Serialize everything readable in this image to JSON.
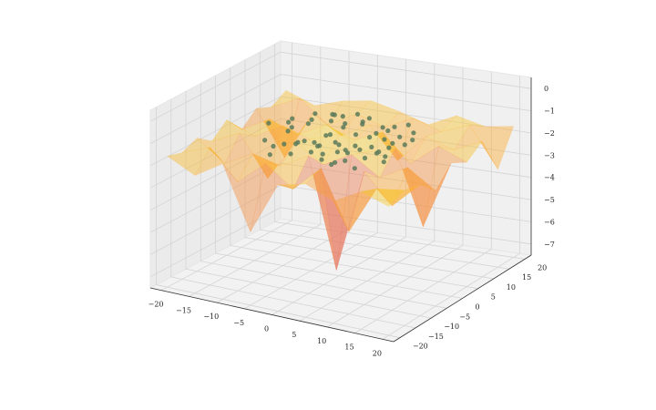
{
  "chart_data": {
    "type": "surface3d",
    "title": "",
    "xlabel": "",
    "ylabel": "",
    "zlabel": "",
    "xlim": [
      -22,
      22
    ],
    "ylim": [
      -22,
      22
    ],
    "zlim": [
      -7.5,
      0.5
    ],
    "xticks": [
      -20,
      -15,
      -10,
      -5,
      0,
      5,
      10,
      15,
      20
    ],
    "yticks": [
      -20,
      -15,
      -10,
      -5,
      0,
      5,
      10,
      15,
      20
    ],
    "zticks": [
      0,
      -1,
      -2,
      -3,
      -4,
      -5,
      -6,
      -7
    ],
    "x_tick_labels": [
      "−20",
      "−15",
      "−10",
      "−5",
      "0",
      "5",
      "10",
      "15",
      "20"
    ],
    "y_tick_labels": [
      "−20",
      "−15",
      "−10",
      "−5",
      "0",
      "5",
      "10",
      "15",
      "20"
    ],
    "z_tick_labels": [
      "0",
      "−1",
      "−2",
      "−3",
      "−4",
      "−5",
      "−6",
      "−7"
    ],
    "grid": true,
    "surface": {
      "x": [
        -20,
        -15,
        -10,
        -5,
        0,
        5,
        10,
        15,
        20
      ],
      "y": [
        -20,
        -15,
        -10,
        -5,
        0,
        5,
        10,
        15,
        20
      ],
      "z": [
        [
          -1.6,
          -2.2,
          -1.4,
          -4.2,
          -1.8,
          -1.5,
          -2.0,
          -1.3,
          -1.7
        ],
        [
          -1.8,
          -1.3,
          -2.6,
          -1.5,
          -2.4,
          -1.2,
          -3.8,
          -1.6,
          -1.4
        ],
        [
          -1.5,
          -2.4,
          -1.7,
          -2.0,
          -1.3,
          -6.2,
          -1.5,
          -2.8,
          -1.6
        ],
        [
          -2.0,
          -1.4,
          -3.2,
          -1.3,
          -2.1,
          -1.4,
          -2.2,
          -1.5,
          -2.3
        ],
        [
          -1.4,
          -1.9,
          -1.2,
          -1.6,
          -1.1,
          -1.7,
          -1.3,
          -4.6,
          -1.5
        ],
        [
          -2.2,
          -1.5,
          -2.0,
          -1.3,
          -1.8,
          -1.2,
          -2.4,
          -1.4,
          -1.9
        ],
        [
          -1.6,
          -3.6,
          -1.4,
          -2.2,
          -1.5,
          -2.9,
          -1.6,
          -2.0,
          -1.4
        ],
        [
          -1.9,
          -1.3,
          -2.3,
          -1.6,
          -2.0,
          -1.4,
          -1.8,
          -1.3,
          -3.1
        ],
        [
          -1.5,
          -2.0,
          -1.6,
          -1.4,
          -1.7,
          -2.1,
          -1.5,
          -1.8,
          -1.6
        ]
      ],
      "colormap": [
        "#0d0887",
        "#6a00a8",
        "#b12a90",
        "#e16462",
        "#fca636",
        "#f0f921"
      ],
      "opacity": 0.45
    },
    "scatter": {
      "color": "#5a7a5a",
      "points": [
        [
          -8,
          -2,
          -1.2
        ],
        [
          -6,
          1,
          -1.0
        ],
        [
          -4,
          -4,
          -1.3
        ],
        [
          -3,
          3,
          -0.9
        ],
        [
          -1,
          -1,
          -1.1
        ],
        [
          0,
          2,
          -0.8
        ],
        [
          1,
          -3,
          -1.2
        ],
        [
          2,
          4,
          -0.9
        ],
        [
          3,
          0,
          -1.0
        ],
        [
          4,
          -2,
          -1.3
        ],
        [
          5,
          3,
          -1.1
        ],
        [
          6,
          -1,
          -0.9
        ],
        [
          7,
          2,
          -1.2
        ],
        [
          8,
          -4,
          -1.0
        ],
        [
          -7,
          4,
          -1.1
        ],
        [
          -5,
          -5,
          -1.4
        ],
        [
          -2,
          5,
          -0.8
        ],
        [
          1,
          6,
          -1.0
        ],
        [
          3,
          -6,
          -1.3
        ],
        [
          6,
          5,
          -1.1
        ],
        [
          9,
          1,
          -1.2
        ],
        [
          -9,
          0,
          -1.0
        ],
        [
          -10,
          3,
          -1.5
        ],
        [
          10,
          -2,
          -1.1
        ],
        [
          -4,
          6,
          -0.9
        ],
        [
          4,
          7,
          -1.2
        ],
        [
          -6,
          -7,
          -1.3
        ],
        [
          7,
          -6,
          -1.0
        ],
        [
          0,
          -7,
          -1.1
        ],
        [
          -1,
          8,
          -0.9
        ],
        [
          2,
          -9,
          -1.2
        ],
        [
          -3,
          -8,
          -1.0
        ],
        [
          5,
          9,
          -1.3
        ],
        [
          -8,
          7,
          -1.1
        ],
        [
          8,
          8,
          -1.0
        ],
        [
          -2,
          -2,
          -2.2
        ],
        [
          1,
          1,
          -2.0
        ],
        [
          3,
          3,
          -2.3
        ],
        [
          -4,
          1,
          -1.9
        ],
        [
          5,
          -4,
          -2.1
        ],
        [
          -6,
          3,
          -2.0
        ],
        [
          6,
          2,
          -1.8
        ],
        [
          -1,
          4,
          -2.2
        ],
        [
          2,
          -5,
          -1.9
        ],
        [
          -7,
          -3,
          -2.1
        ],
        [
          8,
          0,
          -2.0
        ],
        [
          -5,
          5,
          -1.8
        ],
        [
          4,
          5,
          -2.2
        ],
        [
          0,
          0,
          -1.6
        ],
        [
          -9,
          -5,
          -1.7
        ],
        [
          9,
          5,
          -1.6
        ],
        [
          -3,
          7,
          -1.5
        ],
        [
          3,
          -8,
          -1.7
        ],
        [
          7,
          7,
          -1.5
        ],
        [
          -8,
          -8,
          -1.8
        ],
        [
          11,
          -5,
          -1.2
        ],
        [
          -11,
          5,
          -1.3
        ],
        [
          10,
          6,
          -1.1
        ],
        [
          -10,
          -6,
          -1.4
        ],
        [
          0,
          10,
          -1.2
        ],
        [
          12,
          2,
          -1.0
        ],
        [
          -12,
          -1,
          -1.1
        ],
        [
          6,
          -9,
          -1.3
        ],
        [
          -6,
          9,
          -1.2
        ],
        [
          1,
          -11,
          -1.0
        ]
      ]
    }
  }
}
